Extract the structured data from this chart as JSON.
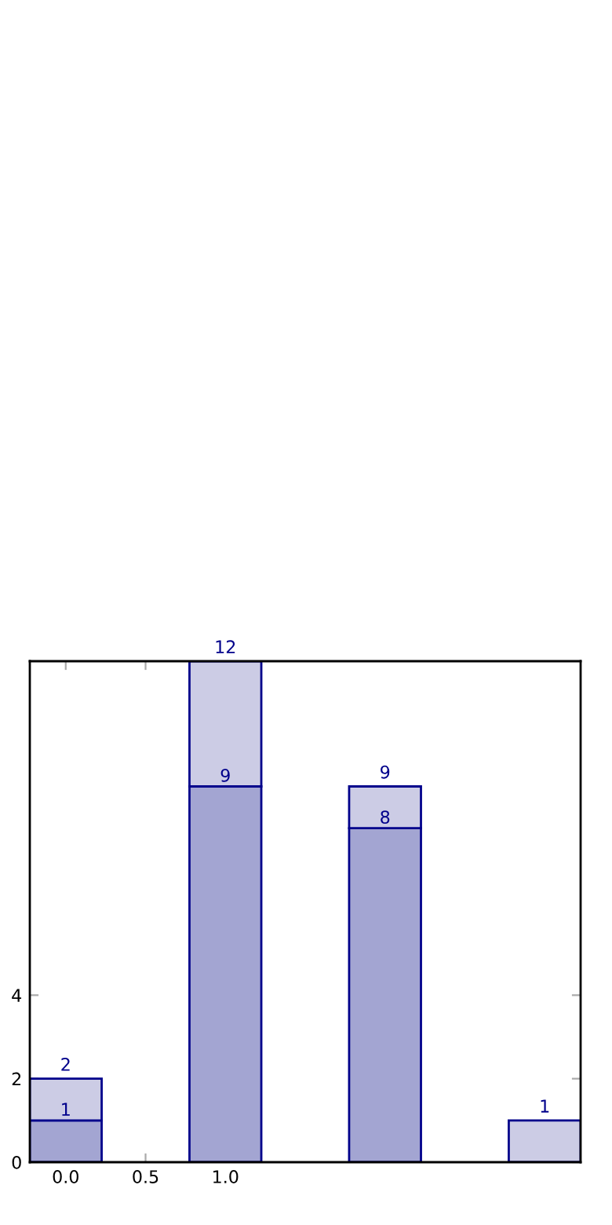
{
  "chart_data": {
    "type": "bar",
    "x": [
      0,
      1,
      2,
      3
    ],
    "stacked": true,
    "series": [
      {
        "color": "#a3a5d2",
        "values": [
          1,
          9,
          8,
          null
        ],
        "value_labels": [
          "1",
          "9",
          "8",
          null
        ]
      },
      {
        "color": "#cccce5",
        "values": [
          1,
          3,
          1,
          1
        ]
      }
    ],
    "totals": [
      "2",
      "12",
      "9",
      "1"
    ],
    "xlim": [
      -0.225,
      3.225
    ],
    "xticks": [
      {
        "value": 0,
        "label": "0.0"
      },
      {
        "value": 0.5,
        "label": "0.5"
      },
      {
        "value": 1,
        "label": "1.0"
      }
    ],
    "ylim": [
      0,
      12
    ],
    "yticks": [
      0,
      2,
      4
    ],
    "grid": false,
    "legend": false
  }
}
